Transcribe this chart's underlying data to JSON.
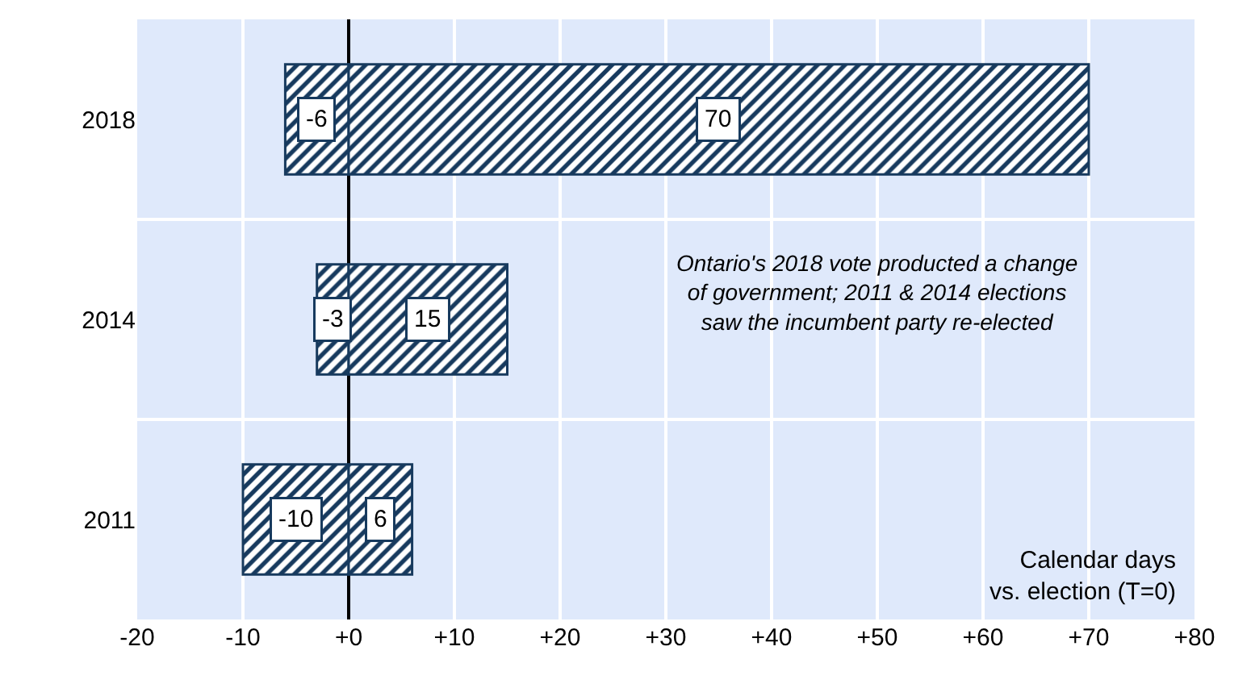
{
  "chart_data": {
    "type": "bar",
    "orientation": "horizontal",
    "stacked": true,
    "categories": [
      "2018",
      "2014",
      "2011"
    ],
    "series": [
      {
        "color": "#173a5e",
        "values": [
          -6,
          -3,
          -10
        ]
      },
      {
        "color": "#173a5e",
        "values": [
          70,
          15,
          6
        ]
      }
    ],
    "data_labels": true,
    "xlabel": "Calendar days\nvs. election (T=0)",
    "xlim": [
      -20,
      80
    ],
    "xticks": [
      -20,
      -10,
      {
        "value": 0,
        "label": "+0"
      },
      {
        "value": 10,
        "label": "+10"
      },
      {
        "value": 20,
        "label": "+20"
      },
      {
        "value": 30,
        "label": "+30"
      },
      {
        "value": 40,
        "label": "+40"
      },
      {
        "value": 50,
        "label": "+50"
      },
      {
        "value": 60,
        "label": "+60"
      },
      {
        "value": 70,
        "label": "+70"
      },
      {
        "value": 80,
        "label": "+80"
      }
    ],
    "annotations": [
      "Ontario's 2018 vote producted a change\nof government; 2011 & 2014 elections\nsaw the incumbent party re-elected"
    ],
    "grid": true
  }
}
